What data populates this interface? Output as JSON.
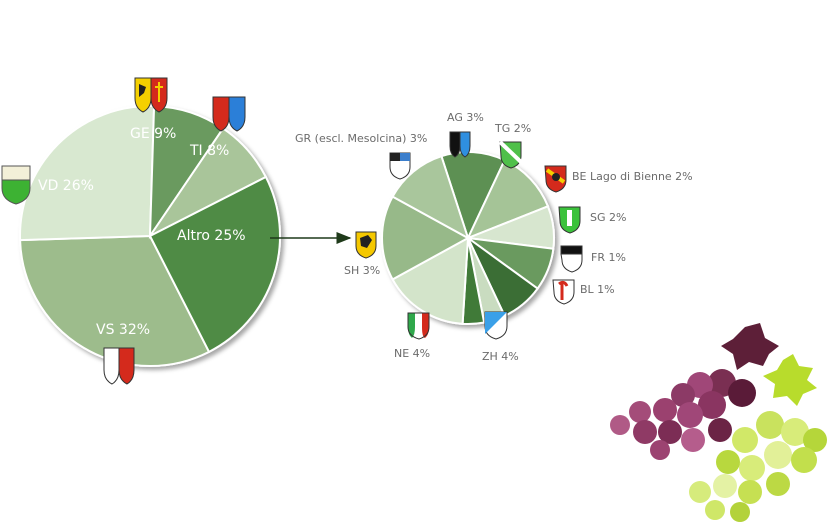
{
  "chart_data": [
    {
      "type": "pie",
      "categories": [
        "VS",
        "VD",
        "GE",
        "TI",
        "Altro"
      ],
      "values": [
        32,
        26,
        9,
        8,
        25
      ],
      "labels": [
        "VS 32%",
        "VD 26%",
        "GE 9%",
        "TI 8%",
        "Altro 25%"
      ],
      "colors": [
        "#9dbc8c",
        "#d8e8d0",
        "#6a9a5e",
        "#a9c59a",
        "#4f8b45"
      ]
    },
    {
      "type": "pie",
      "categories": [
        "GR (escl. Mesolcina)",
        "AG",
        "TG",
        "BE Lago di Bienne",
        "SG",
        "FR",
        "BL",
        "ZH",
        "NE",
        "SH"
      ],
      "values": [
        3,
        3,
        2,
        2,
        2,
        1,
        1,
        4,
        4,
        3
      ],
      "labels": [
        "GR (escl. Mesolcina) 3%",
        "AG 3%",
        "TG 2%",
        "BE Lago di Bienne 2%",
        "SG 2%",
        "FR 1%",
        "BL 1%",
        "ZH 4%",
        "NE 4%",
        "SH 3%"
      ],
      "colors": [
        "#5d9052",
        "#a5c497",
        "#d7e6cf",
        "#6a9a5e",
        "#3a6e35",
        "#c9dcc0",
        "#3f7a38",
        "#d3e4ca",
        "#97b989",
        "#a9c69c"
      ]
    }
  ],
  "icons": [
    "grape-cluster-dark-icon",
    "grape-cluster-light-icon",
    "arrow-right-icon",
    "coat-of-arms-icon"
  ]
}
